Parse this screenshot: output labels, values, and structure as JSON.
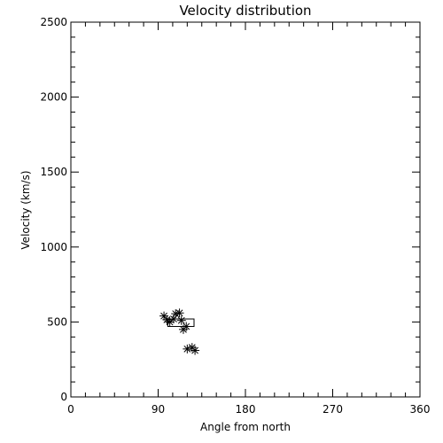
{
  "chart_data": {
    "type": "scatter",
    "title": "Velocity distribution",
    "xlabel": "Angle from north",
    "ylabel": "Velocity (km/s)",
    "xlim": [
      0,
      360
    ],
    "ylim": [
      0,
      2500
    ],
    "xticks": [
      "0",
      "90",
      "180",
      "270",
      "360"
    ],
    "yticks": [
      "0",
      "500",
      "1000",
      "1500",
      "2000",
      "2500"
    ],
    "grid": false,
    "series": [
      {
        "marker": "asterisk",
        "points": [
          {
            "x": 96,
            "y": 540
          },
          {
            "x": 99,
            "y": 515
          },
          {
            "x": 102,
            "y": 500
          },
          {
            "x": 106,
            "y": 520
          },
          {
            "x": 108,
            "y": 555
          },
          {
            "x": 112,
            "y": 560
          },
          {
            "x": 114,
            "y": 510
          },
          {
            "x": 116,
            "y": 450
          },
          {
            "x": 119,
            "y": 470
          },
          {
            "x": 120,
            "y": 320
          },
          {
            "x": 125,
            "y": 330
          },
          {
            "x": 128,
            "y": 310
          }
        ]
      }
    ],
    "boxes": [
      {
        "x0": 100,
        "x1": 127,
        "y0": 470,
        "y1": 520
      }
    ]
  }
}
